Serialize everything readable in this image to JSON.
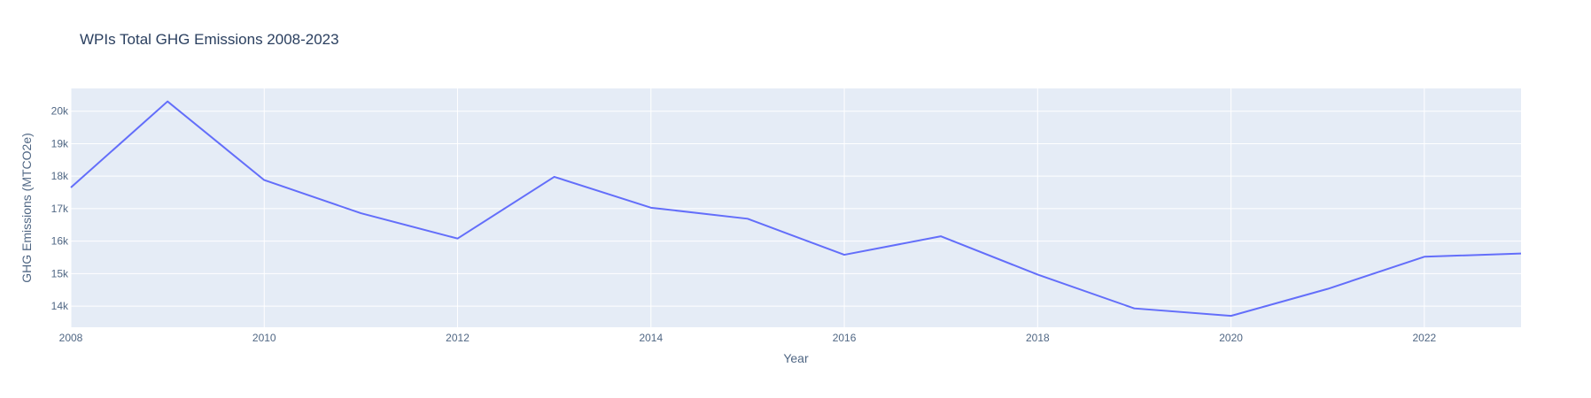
{
  "chart_data": {
    "type": "line",
    "title": "WPIs Total GHG Emissions 2008-2023",
    "xlabel": "Year",
    "ylabel": "GHG Emissions (MTCO2e)",
    "x": [
      2008,
      2009,
      2010,
      2011,
      2012,
      2013,
      2014,
      2015,
      2016,
      2017,
      2018,
      2019,
      2020,
      2021,
      2022,
      2023
    ],
    "series": [
      {
        "values": [
          17650,
          20300,
          17880,
          16860,
          16080,
          17980,
          17030,
          16690,
          15580,
          16150,
          14970,
          13930,
          13700,
          14530,
          15520,
          15620
        ]
      }
    ],
    "xlim": [
      2008,
      2023
    ],
    "ylim": [
      13350,
      20700
    ],
    "xticks": [
      2008,
      2010,
      2012,
      2014,
      2016,
      2018,
      2020,
      2022
    ],
    "xtick_labels": [
      "2008",
      "2010",
      "2012",
      "2014",
      "2016",
      "2018",
      "2020",
      "2022"
    ],
    "yticks": [
      14000,
      15000,
      16000,
      17000,
      18000,
      19000,
      20000
    ],
    "ytick_labels": [
      "14k",
      "15k",
      "16k",
      "17k",
      "18k",
      "19k",
      "20k"
    ],
    "grid": true,
    "legend": "none",
    "colors": {
      "line": "#636efa",
      "plot_bg": "#e5ecf6",
      "grid": "#ffffff",
      "text": "#506784",
      "title": "#2a3f5f"
    }
  }
}
